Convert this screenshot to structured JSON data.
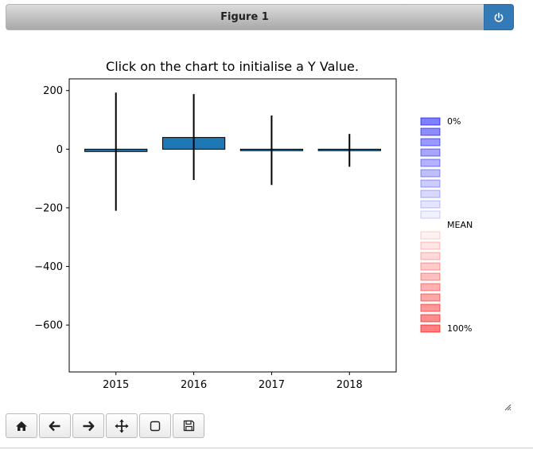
{
  "window": {
    "title": "Figure 1",
    "power_icon": "power-icon"
  },
  "chart_data": {
    "type": "bar",
    "title": "Click on the chart to initialise a Y Value.",
    "categories": [
      "2015",
      "2016",
      "2017",
      "2018"
    ],
    "values": [
      -8,
      40,
      -5,
      -5
    ],
    "error_low": [
      -210,
      -105,
      -122,
      -60
    ],
    "error_high": [
      193,
      188,
      115,
      52
    ],
    "ylim": [
      -760,
      240
    ],
    "yticks": [
      200,
      0,
      -200,
      -400,
      -600
    ],
    "ytick_labels": [
      "200",
      "0",
      "−200",
      "−400",
      "−600"
    ],
    "bar_color": "#1f77b4",
    "grid": false
  },
  "legend": {
    "placement": "right",
    "top_label": "0%",
    "mid_label": "MEAN",
    "bottom_label": "100%",
    "blue_color": "#0000ff",
    "red_color": "#ff0000",
    "blue_opacities": [
      0.5,
      0.45,
      0.4,
      0.35,
      0.3,
      0.25,
      0.2,
      0.15,
      0.1,
      0.05
    ],
    "red_opacities": [
      0.05,
      0.1,
      0.15,
      0.2,
      0.25,
      0.3,
      0.35,
      0.4,
      0.45,
      0.5
    ]
  },
  "toolbar": {
    "buttons": [
      {
        "name": "home-button",
        "icon": "home-icon"
      },
      {
        "name": "back-button",
        "icon": "arrow-left-icon"
      },
      {
        "name": "forward-button",
        "icon": "arrow-right-icon"
      },
      {
        "name": "pan-button",
        "icon": "move-icon"
      },
      {
        "name": "zoom-button",
        "icon": "square-icon"
      },
      {
        "name": "save-button",
        "icon": "floppy-icon"
      }
    ]
  }
}
